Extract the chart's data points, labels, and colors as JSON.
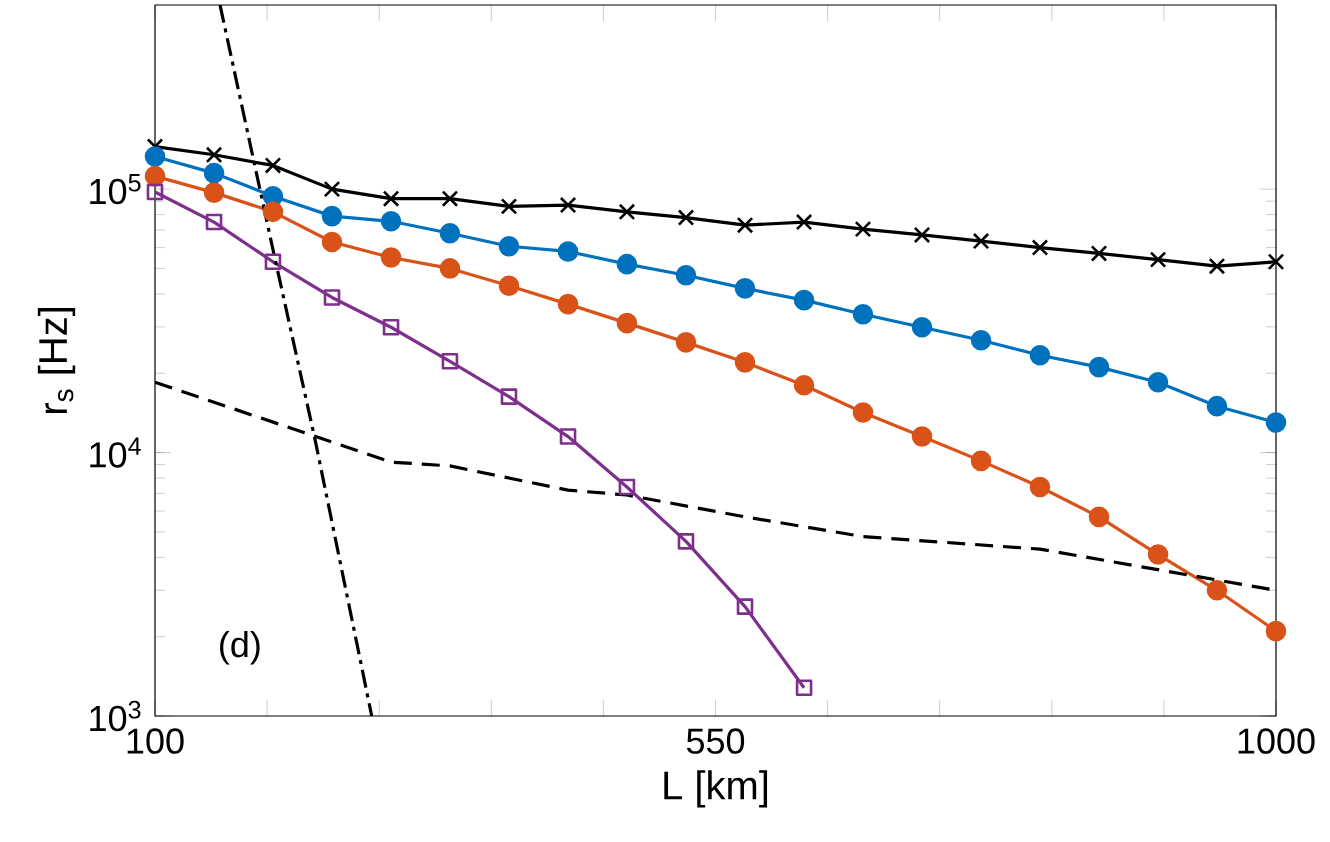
{
  "chart_data": {
    "type": "line",
    "xlabel": "L [km]",
    "ylabel": "r$_{s}$ [Hz]",
    "log": "y",
    "grid": false,
    "xlim": [
      100,
      1000
    ],
    "ylim": [
      1000,
      500000
    ],
    "xticks": [
      100,
      {
        "value": 190,
        "label": null
      },
      {
        "value": 280,
        "label": null
      },
      {
        "value": 370,
        "label": null
      },
      {
        "value": 460,
        "label": null
      },
      550,
      {
        "value": 640,
        "label": null
      },
      {
        "value": 730,
        "label": null
      },
      {
        "value": 820,
        "label": null
      },
      {
        "value": 910,
        "label": null
      },
      1000
    ],
    "yticks": [
      {
        "value": 1000,
        "label": "10$^{3}$"
      },
      {
        "value": 10000,
        "label": "10$^{4}$"
      },
      {
        "value": 100000,
        "label": "10$^{5}$"
      }
    ],
    "x": [
      100,
      147.4,
      194.7,
      242.1,
      289.5,
      336.8,
      384.2,
      431.6,
      478.9,
      526.3,
      573.7,
      621.1,
      668.4,
      715.8,
      763.2,
      810.5,
      857.9,
      905.3,
      952.6,
      1000
    ],
    "annotations": [
      "(d)"
    ],
    "series": [
      {
        "color": "#000000",
        "marker": "cross",
        "line_style": "solid",
        "values": [
          145000,
          135000,
          123000,
          100000,
          92000,
          92000,
          86000,
          87000,
          82000,
          78000,
          73000,
          75000,
          70500,
          67000,
          63500,
          60000,
          57000,
          54000,
          51000,
          53000
        ]
      },
      {
        "color": "#0072bd",
        "marker": "circle",
        "line_style": "solid",
        "values": [
          133000,
          115000,
          94000,
          79000,
          75500,
          68000,
          60700,
          58000,
          51900,
          47100,
          42000,
          37900,
          33500,
          29900,
          26700,
          23400,
          21100,
          18500,
          15000,
          13000
        ]
      },
      {
        "color": "#d95319",
        "marker": "circle",
        "line_style": "solid",
        "values": [
          112000,
          97000,
          82000,
          63000,
          55000,
          50000,
          43000,
          36600,
          31000,
          26200,
          22000,
          18000,
          14200,
          11500,
          9300,
          7400,
          5700,
          4100,
          3000,
          2100
        ]
      },
      {
        "color": "#7e2f8e",
        "marker": "square",
        "line_style": "solid",
        "values": [
          97500,
          75000,
          53000,
          38800,
          29900,
          22200,
          16300,
          11500,
          7400,
          4600,
          2600,
          1280,
          null,
          null,
          null,
          null,
          null,
          null,
          null,
          null
        ]
      },
      {
        "color": "#000000",
        "marker": "none",
        "line_style": "dashed",
        "x": [
          100,
          289.5,
          336.8,
          431.6,
          478.9,
          573.7,
          668.4,
          810.5,
          1000
        ],
        "values": [
          18500,
          9200,
          8900,
          7200,
          6900,
          5700,
          4800,
          4300,
          3000
        ]
      },
      {
        "color": "#000000",
        "marker": "none",
        "line_style": "dashdot",
        "x": [
          152.2,
          194.7,
          228.5,
          274
        ],
        "values": [
          500000,
          59000,
          11200,
          1000
        ]
      }
    ]
  }
}
